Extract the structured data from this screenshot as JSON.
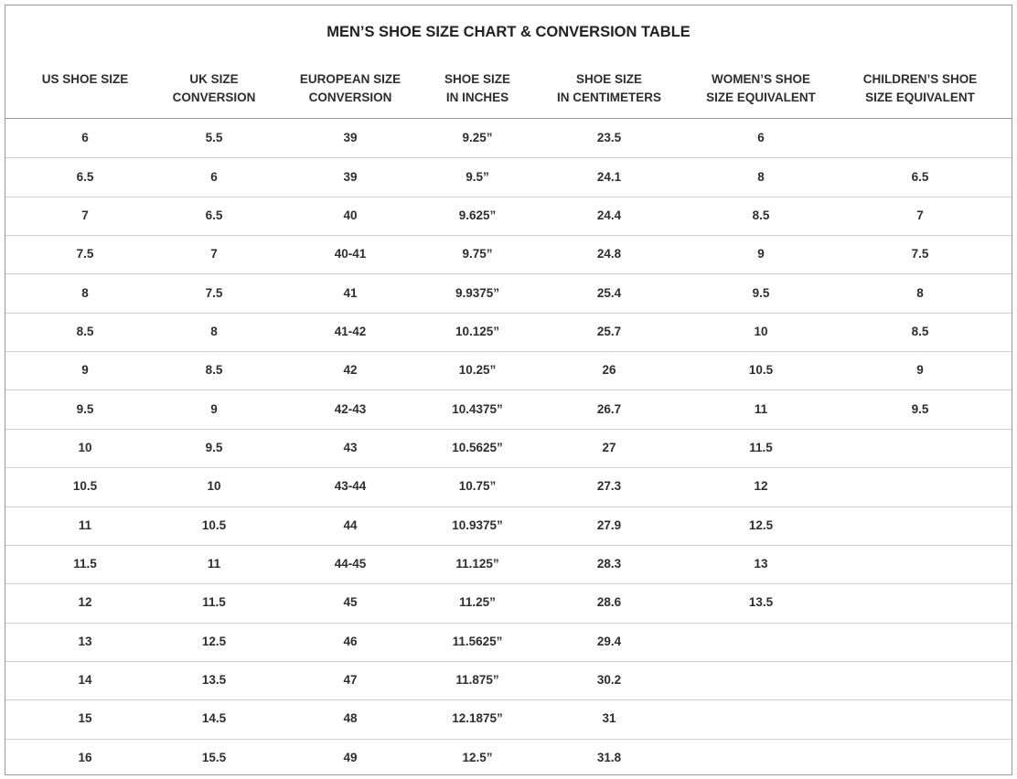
{
  "title": "MEN’S SHOE SIZE CHART & CONVERSION TABLE",
  "table": {
    "headers": [
      [
        "US SHOE SIZE"
      ],
      [
        "UK SIZE",
        "CONVERSION"
      ],
      [
        "EUROPEAN SIZE",
        "CONVERSION"
      ],
      [
        "SHOE SIZE",
        "IN INCHES"
      ],
      [
        "SHOE SIZE",
        "IN CENTIMETERS"
      ],
      [
        "WOMEN’S SHOE",
        "SIZE EQUIVALENT"
      ],
      [
        "CHILDREN’S SHOE",
        "SIZE EQUIVALENT"
      ]
    ],
    "rows": [
      [
        "6",
        "5.5",
        "39",
        "9.25”",
        "23.5",
        "6",
        null
      ],
      [
        "6.5",
        "6",
        "39",
        "9.5”",
        "24.1",
        "8",
        "6.5"
      ],
      [
        "7",
        "6.5",
        "40",
        "9.625”",
        "24.4",
        "8.5",
        "7"
      ],
      [
        "7.5",
        "7",
        "40-41",
        "9.75”",
        "24.8",
        "9",
        "7.5"
      ],
      [
        "8",
        "7.5",
        "41",
        "9.9375”",
        "25.4",
        "9.5",
        "8"
      ],
      [
        "8.5",
        "8",
        "41-42",
        "10.125”",
        "25.7",
        "10",
        "8.5"
      ],
      [
        "9",
        "8.5",
        "42",
        "10.25”",
        "26",
        "10.5",
        "9"
      ],
      [
        "9.5",
        "9",
        "42-43",
        "10.4375”",
        "26.7",
        "11",
        "9.5"
      ],
      [
        "10",
        "9.5",
        "43",
        "10.5625”",
        "27",
        "11.5",
        null
      ],
      [
        "10.5",
        "10",
        "43-44",
        "10.75”",
        "27.3",
        "12",
        null
      ],
      [
        "11",
        "10.5",
        "44",
        "10.9375”",
        "27.9",
        "12.5",
        null
      ],
      [
        "11.5",
        "11",
        "44-45",
        "11.125”",
        "28.3",
        "13",
        null
      ],
      [
        "12",
        "11.5",
        "45",
        "11.25”",
        "28.6",
        "13.5",
        null
      ],
      [
        "13",
        "12.5",
        "46",
        "11.5625”",
        "29.4",
        null,
        null
      ],
      [
        "14",
        "13.5",
        "47",
        "11.875”",
        "30.2",
        null,
        null
      ],
      [
        "15",
        "14.5",
        "48",
        "12.1875”",
        "31",
        null,
        null
      ],
      [
        "16",
        "15.5",
        "49",
        "12.5”",
        "31.8",
        null,
        null
      ]
    ]
  }
}
